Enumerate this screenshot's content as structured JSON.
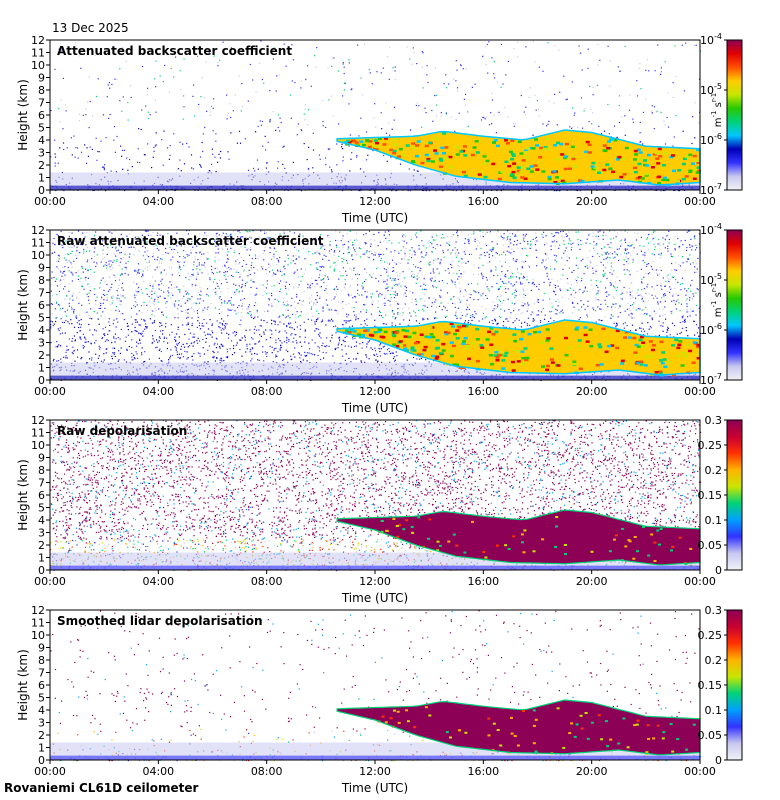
{
  "date": "13 Dec 2025",
  "footer": "Rovaniemi CL61D ceilometer",
  "colors": {
    "backscatter_scale": [
      "#f2f2f6",
      "#c8c8f0",
      "#3232ff",
      "#0000b4",
      "#00c8ff",
      "#00d278",
      "#28c800",
      "#c8e600",
      "#ffcc00",
      "#ff5000",
      "#e10000",
      "#8c0055"
    ],
    "depol_scale": [
      "#f2f2f6",
      "#c8c8f0",
      "#3232ff",
      "#00a0ff",
      "#00d278",
      "#c8e600",
      "#ffb400",
      "#ff3200",
      "#c80032",
      "#8c0055"
    ],
    "depol_dominant": "#8c0055"
  },
  "chart_data": [
    {
      "type": "heatmap",
      "title": "Attenuated backscatter coefficient",
      "xlabel": "Time (UTC)",
      "ylabel": "Height (km)",
      "x_ticks": [
        "00:00",
        "04:00",
        "08:00",
        "12:00",
        "16:00",
        "20:00",
        "00:00"
      ],
      "y_ticks": [
        "0",
        "1",
        "2",
        "3",
        "4",
        "5",
        "6",
        "7",
        "8",
        "9",
        "10",
        "11",
        "12"
      ],
      "ylim": [
        0,
        12
      ],
      "xlim_hours": [
        0,
        24
      ],
      "colorbar": {
        "scale": "log",
        "ticks": [
          "10-7",
          "10-6",
          "10-5",
          "10-4"
        ],
        "unit": "m-1 sr-1"
      },
      "cloud_top_km": [
        [
          10.6,
          4.1
        ],
        [
          13.5,
          4.3
        ],
        [
          14.5,
          4.7
        ],
        [
          16.0,
          4.3
        ],
        [
          17.5,
          4.0
        ],
        [
          19.0,
          4.8
        ],
        [
          20.0,
          4.6
        ],
        [
          22.0,
          3.5
        ],
        [
          24.0,
          3.3
        ]
      ],
      "cloud_base_km": [
        [
          10.6,
          3.9
        ],
        [
          12.0,
          3.2
        ],
        [
          13.5,
          2.0
        ],
        [
          15.0,
          1.1
        ],
        [
          17.0,
          0.6
        ],
        [
          19.0,
          0.5
        ],
        [
          21.0,
          0.8
        ],
        [
          22.5,
          0.4
        ],
        [
          24.0,
          0.6
        ]
      ]
    },
    {
      "type": "heatmap",
      "title": "Raw attenuated backscatter coefficient",
      "xlabel": "Time (UTC)",
      "ylabel": "Height (km)",
      "x_ticks": [
        "00:00",
        "04:00",
        "08:00",
        "12:00",
        "16:00",
        "20:00",
        "00:00"
      ],
      "y_ticks": [
        "0",
        "1",
        "2",
        "3",
        "4",
        "5",
        "6",
        "7",
        "8",
        "9",
        "10",
        "11",
        "12"
      ],
      "ylim": [
        0,
        12
      ],
      "xlim_hours": [
        0,
        24
      ],
      "colorbar": {
        "scale": "log",
        "ticks": [
          "10-7",
          "10-6",
          "10-5",
          "10-4"
        ],
        "unit": "m-1 sr-1"
      }
    },
    {
      "type": "heatmap",
      "title": "Raw depolarisation",
      "xlabel": "Time (UTC)",
      "ylabel": "Height (km)",
      "x_ticks": [
        "00:00",
        "04:00",
        "08:00",
        "12:00",
        "16:00",
        "20:00",
        "00:00"
      ],
      "y_ticks": [
        "0",
        "1",
        "2",
        "3",
        "4",
        "5",
        "6",
        "7",
        "8",
        "9",
        "10",
        "11",
        "12"
      ],
      "ylim": [
        0,
        12
      ],
      "xlim_hours": [
        0,
        24
      ],
      "colorbar": {
        "scale": "linear",
        "range": [
          0,
          0.3
        ],
        "ticks": [
          "0",
          "0.05",
          "0.1",
          "0.15",
          "0.2",
          "0.25",
          "0.3"
        ],
        "unit": ""
      }
    },
    {
      "type": "heatmap",
      "title": "Smoothed lidar depolarisation",
      "xlabel": "Time (UTC)",
      "ylabel": "Height (km)",
      "x_ticks": [
        "00:00",
        "04:00",
        "08:00",
        "12:00",
        "16:00",
        "20:00",
        "00:00"
      ],
      "y_ticks": [
        "0",
        "1",
        "2",
        "3",
        "4",
        "5",
        "6",
        "7",
        "8",
        "9",
        "10",
        "11",
        "12"
      ],
      "ylim": [
        0,
        12
      ],
      "xlim_hours": [
        0,
        24
      ],
      "colorbar": {
        "scale": "linear",
        "range": [
          0,
          0.3
        ],
        "ticks": [
          "0",
          "0.05",
          "0.1",
          "0.15",
          "0.2",
          "0.25",
          "0.3"
        ],
        "unit": ""
      }
    }
  ]
}
